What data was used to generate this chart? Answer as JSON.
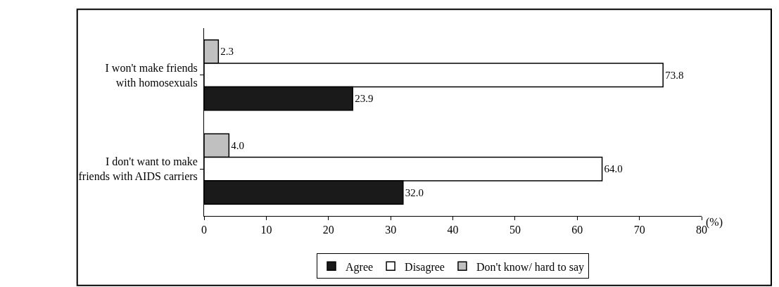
{
  "chart_data": {
    "type": "bar",
    "orientation": "horizontal",
    "categories": [
      "I won't make friends with homosexuals",
      "I don't want to make friends with AIDS carriers"
    ],
    "series": [
      {
        "name": "Agree",
        "color": "#1a1a1a",
        "values": [
          23.9,
          32.0
        ],
        "value_labels": [
          "23.9",
          "32.0"
        ]
      },
      {
        "name": "Disagree",
        "color": "#ffffff",
        "values": [
          73.8,
          64.0
        ],
        "value_labels": [
          "73.8",
          "64.0"
        ]
      },
      {
        "name": "Don't know/ hard to say",
        "color": "#c0c0c0",
        "values": [
          2.3,
          4.0
        ],
        "value_labels": [
          "2.3",
          "4.0"
        ]
      }
    ],
    "xlim": [
      0,
      80
    ],
    "xticks": [
      0,
      10,
      20,
      30,
      40,
      50,
      60,
      70,
      80
    ],
    "xlabel": "(%)",
    "legend": "bottom"
  }
}
